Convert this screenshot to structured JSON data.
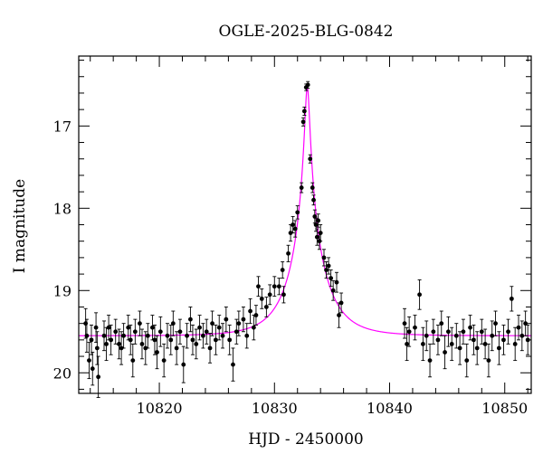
{
  "chart_data": {
    "type": "scatter",
    "title": "OGLE-2025-BLG-0842",
    "xlabel": "HJD - 2450000",
    "ylabel": "I magnitude",
    "xlim": [
      10813,
      10852.3
    ],
    "ylim": [
      20.25,
      16.15
    ],
    "y_inverted": true,
    "x_ticks": [
      10820,
      10830,
      10840,
      10850
    ],
    "y_ticks": [
      17,
      18,
      19,
      20
    ],
    "x_tick_labels": [
      "10820",
      "10830",
      "10840",
      "10850"
    ],
    "y_tick_labels": [
      "17",
      "18",
      "19",
      "20"
    ],
    "grid": false,
    "legend": "none",
    "colors": {
      "data": "#000000",
      "model": "#ff00ff",
      "frame": "#000000"
    },
    "model": {
      "label": "",
      "baseline": 19.55,
      "peak_mag": 16.52,
      "t0": 10832.85,
      "tE": 2.9,
      "u0": 0.065
    },
    "series": [
      {
        "values": [
          [
            10813.6,
            19.4,
            0.18
          ],
          [
            10813.7,
            19.55,
            0.2
          ],
          [
            10813.9,
            19.85,
            0.22
          ],
          [
            10814.1,
            19.6,
            0.18
          ],
          [
            10814.2,
            19.95,
            0.2
          ],
          [
            10814.5,
            19.45,
            0.18
          ],
          [
            10814.6,
            19.7,
            0.2
          ],
          [
            10814.7,
            20.05,
            0.25
          ],
          [
            10815.2,
            19.55,
            0.18
          ],
          [
            10815.4,
            19.65,
            0.2
          ],
          [
            10815.6,
            19.45,
            0.15
          ],
          [
            10815.8,
            19.6,
            0.18
          ],
          [
            10816.2,
            19.5,
            0.15
          ],
          [
            10816.5,
            19.65,
            0.18
          ],
          [
            10816.7,
            19.7,
            0.2
          ],
          [
            10816.9,
            19.55,
            0.15
          ],
          [
            10817.3,
            19.45,
            0.15
          ],
          [
            10817.5,
            19.6,
            0.18
          ],
          [
            10817.7,
            19.85,
            0.2
          ],
          [
            10817.9,
            19.5,
            0.15
          ],
          [
            10818.3,
            19.4,
            0.15
          ],
          [
            10818.5,
            19.65,
            0.18
          ],
          [
            10818.8,
            19.7,
            0.2
          ],
          [
            10819.0,
            19.55,
            0.15
          ],
          [
            10819.4,
            19.45,
            0.15
          ],
          [
            10819.6,
            19.6,
            0.18
          ],
          [
            10819.8,
            19.75,
            0.2
          ],
          [
            10820.1,
            19.5,
            0.18
          ],
          [
            10820.4,
            19.85,
            0.2
          ],
          [
            10820.7,
            19.55,
            0.15
          ],
          [
            10821.0,
            19.6,
            0.18
          ],
          [
            10821.2,
            19.4,
            0.15
          ],
          [
            10821.5,
            19.7,
            0.2
          ],
          [
            10821.8,
            19.5,
            0.15
          ],
          [
            10822.1,
            19.9,
            0.22
          ],
          [
            10822.4,
            19.55,
            0.15
          ],
          [
            10822.7,
            19.35,
            0.15
          ],
          [
            10822.9,
            19.6,
            0.18
          ],
          [
            10823.2,
            19.65,
            0.18
          ],
          [
            10823.5,
            19.45,
            0.15
          ],
          [
            10823.8,
            19.55,
            0.15
          ],
          [
            10824.1,
            19.5,
            0.15
          ],
          [
            10824.4,
            19.7,
            0.18
          ],
          [
            10824.6,
            19.4,
            0.15
          ],
          [
            10824.9,
            19.6,
            0.18
          ],
          [
            10825.2,
            19.45,
            0.15
          ],
          [
            10825.5,
            19.55,
            0.15
          ],
          [
            10825.8,
            19.35,
            0.15
          ],
          [
            10826.1,
            19.6,
            0.18
          ],
          [
            10826.4,
            19.9,
            0.2
          ],
          [
            10826.7,
            19.5,
            0.15
          ],
          [
            10826.9,
            19.4,
            0.15
          ],
          [
            10827.3,
            19.35,
            0.15
          ],
          [
            10827.6,
            19.55,
            0.15
          ],
          [
            10827.9,
            19.25,
            0.15
          ],
          [
            10828.2,
            19.45,
            0.15
          ],
          [
            10828.4,
            19.3,
            0.12
          ],
          [
            10828.6,
            18.95,
            0.12
          ],
          [
            10828.9,
            19.1,
            0.12
          ],
          [
            10829.3,
            19.2,
            0.12
          ],
          [
            10829.6,
            19.05,
            0.12
          ],
          [
            10830.0,
            18.95,
            0.12
          ],
          [
            10830.4,
            18.95,
            0.1
          ],
          [
            10830.7,
            18.75,
            0.1
          ],
          [
            10830.8,
            19.05,
            0.1
          ],
          [
            10831.2,
            18.55,
            0.1
          ],
          [
            10831.4,
            18.3,
            0.1
          ],
          [
            10831.6,
            18.2,
            0.1
          ],
          [
            10831.8,
            18.25,
            0.1
          ],
          [
            10832.0,
            18.05,
            0.08
          ],
          [
            10832.35,
            17.75,
            0.06
          ],
          [
            10832.5,
            16.95,
            0.05
          ],
          [
            10832.6,
            16.82,
            0.05
          ],
          [
            10832.75,
            16.53,
            0.04
          ],
          [
            10832.9,
            16.5,
            0.04
          ],
          [
            10833.1,
            17.4,
            0.05
          ],
          [
            10833.3,
            17.75,
            0.06
          ],
          [
            10833.4,
            17.9,
            0.06
          ],
          [
            10833.5,
            18.1,
            0.08
          ],
          [
            10833.6,
            18.2,
            0.08
          ],
          [
            10833.7,
            18.35,
            0.1
          ],
          [
            10833.8,
            18.15,
            0.08
          ],
          [
            10833.9,
            18.4,
            0.1
          ],
          [
            10834.0,
            18.3,
            0.1
          ],
          [
            10834.3,
            18.6,
            0.1
          ],
          [
            10834.5,
            18.75,
            0.1
          ],
          [
            10834.7,
            18.7,
            0.1
          ],
          [
            10834.9,
            18.85,
            0.1
          ],
          [
            10835.1,
            19.0,
            0.12
          ],
          [
            10835.4,
            18.9,
            0.12
          ],
          [
            10835.6,
            19.3,
            0.15
          ],
          [
            10835.8,
            19.15,
            0.12
          ],
          [
            10841.3,
            19.4,
            0.18
          ],
          [
            10841.5,
            19.65,
            0.2
          ],
          [
            10841.7,
            19.5,
            0.18
          ],
          [
            10842.2,
            19.45,
            0.15
          ],
          [
            10842.6,
            19.05,
            0.18
          ],
          [
            10842.9,
            19.65,
            0.2
          ],
          [
            10843.2,
            19.55,
            0.18
          ],
          [
            10843.5,
            19.85,
            0.2
          ],
          [
            10843.8,
            19.5,
            0.15
          ],
          [
            10844.2,
            19.6,
            0.18
          ],
          [
            10844.5,
            19.4,
            0.15
          ],
          [
            10844.8,
            19.75,
            0.2
          ],
          [
            10845.1,
            19.5,
            0.18
          ],
          [
            10845.4,
            19.65,
            0.2
          ],
          [
            10845.8,
            19.55,
            0.15
          ],
          [
            10846.1,
            19.7,
            0.2
          ],
          [
            10846.4,
            19.5,
            0.15
          ],
          [
            10846.7,
            19.85,
            0.2
          ],
          [
            10847.0,
            19.45,
            0.15
          ],
          [
            10847.3,
            19.6,
            0.18
          ],
          [
            10847.6,
            19.7,
            0.2
          ],
          [
            10848.0,
            19.5,
            0.15
          ],
          [
            10848.3,
            19.65,
            0.18
          ],
          [
            10848.6,
            19.85,
            0.2
          ],
          [
            10848.9,
            19.55,
            0.18
          ],
          [
            10849.2,
            19.4,
            0.15
          ],
          [
            10849.5,
            19.7,
            0.2
          ],
          [
            10849.9,
            19.6,
            0.18
          ],
          [
            10850.3,
            19.5,
            0.15
          ],
          [
            10850.6,
            19.1,
            0.15
          ],
          [
            10850.9,
            19.65,
            0.2
          ],
          [
            10851.2,
            19.45,
            0.15
          ],
          [
            10851.5,
            19.55,
            0.18
          ],
          [
            10851.8,
            19.4,
            0.15
          ],
          [
            10852.0,
            19.6,
            0.18
          ]
        ]
      }
    ]
  }
}
